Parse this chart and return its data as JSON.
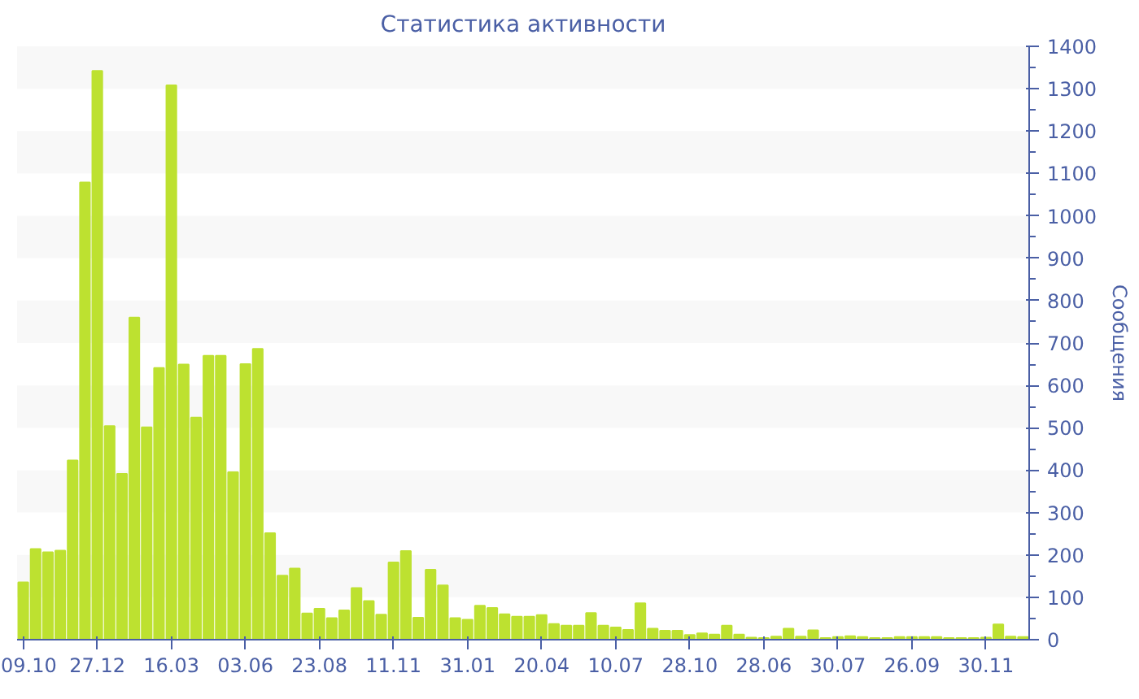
{
  "chart_data": {
    "type": "bar",
    "title": "Статистика активности",
    "ylabel": "Сообщения",
    "categories": [
      "09.10",
      null,
      null,
      null,
      null,
      null,
      "27.12",
      null,
      null,
      null,
      null,
      null,
      "16.03",
      null,
      null,
      null,
      null,
      null,
      "03.06",
      null,
      null,
      null,
      null,
      null,
      "23.08",
      null,
      null,
      null,
      null,
      null,
      "11.11",
      null,
      null,
      null,
      null,
      null,
      "31.01",
      null,
      null,
      null,
      null,
      null,
      "20.04",
      null,
      null,
      null,
      null,
      null,
      "10.07",
      null,
      null,
      null,
      null,
      null,
      "28.10",
      null,
      null,
      null,
      null,
      null,
      "28.06",
      null,
      null,
      null,
      null,
      null,
      "30.07",
      null,
      null,
      null,
      null,
      null,
      "26.09",
      null,
      null,
      null,
      null,
      null,
      "30.11",
      null,
      null,
      null
    ],
    "values": [
      135,
      214,
      206,
      210,
      423,
      1079,
      1342,
      504,
      391,
      760,
      501,
      641,
      1308,
      649,
      524,
      670,
      670,
      395,
      650,
      686,
      251,
      151,
      168,
      62,
      73,
      51,
      69,
      122,
      91,
      59,
      182,
      209,
      52,
      165,
      128,
      51,
      47,
      80,
      75,
      60,
      54,
      54,
      58,
      37,
      33,
      33,
      63,
      33,
      29,
      23,
      86,
      26,
      21,
      21,
      11,
      15,
      12,
      33,
      12,
      5,
      4,
      7,
      26,
      7,
      22,
      4,
      6,
      8,
      6,
      4,
      4,
      6,
      6,
      6,
      6,
      4,
      4,
      4,
      5,
      36,
      7,
      6
    ],
    "color": "#bde130",
    "ylim": [
      0,
      1400
    ],
    "yticks": [
      0,
      100,
      200,
      300,
      400,
      500,
      600,
      700,
      800,
      900,
      1000,
      1100,
      1200,
      1300,
      1400
    ]
  }
}
